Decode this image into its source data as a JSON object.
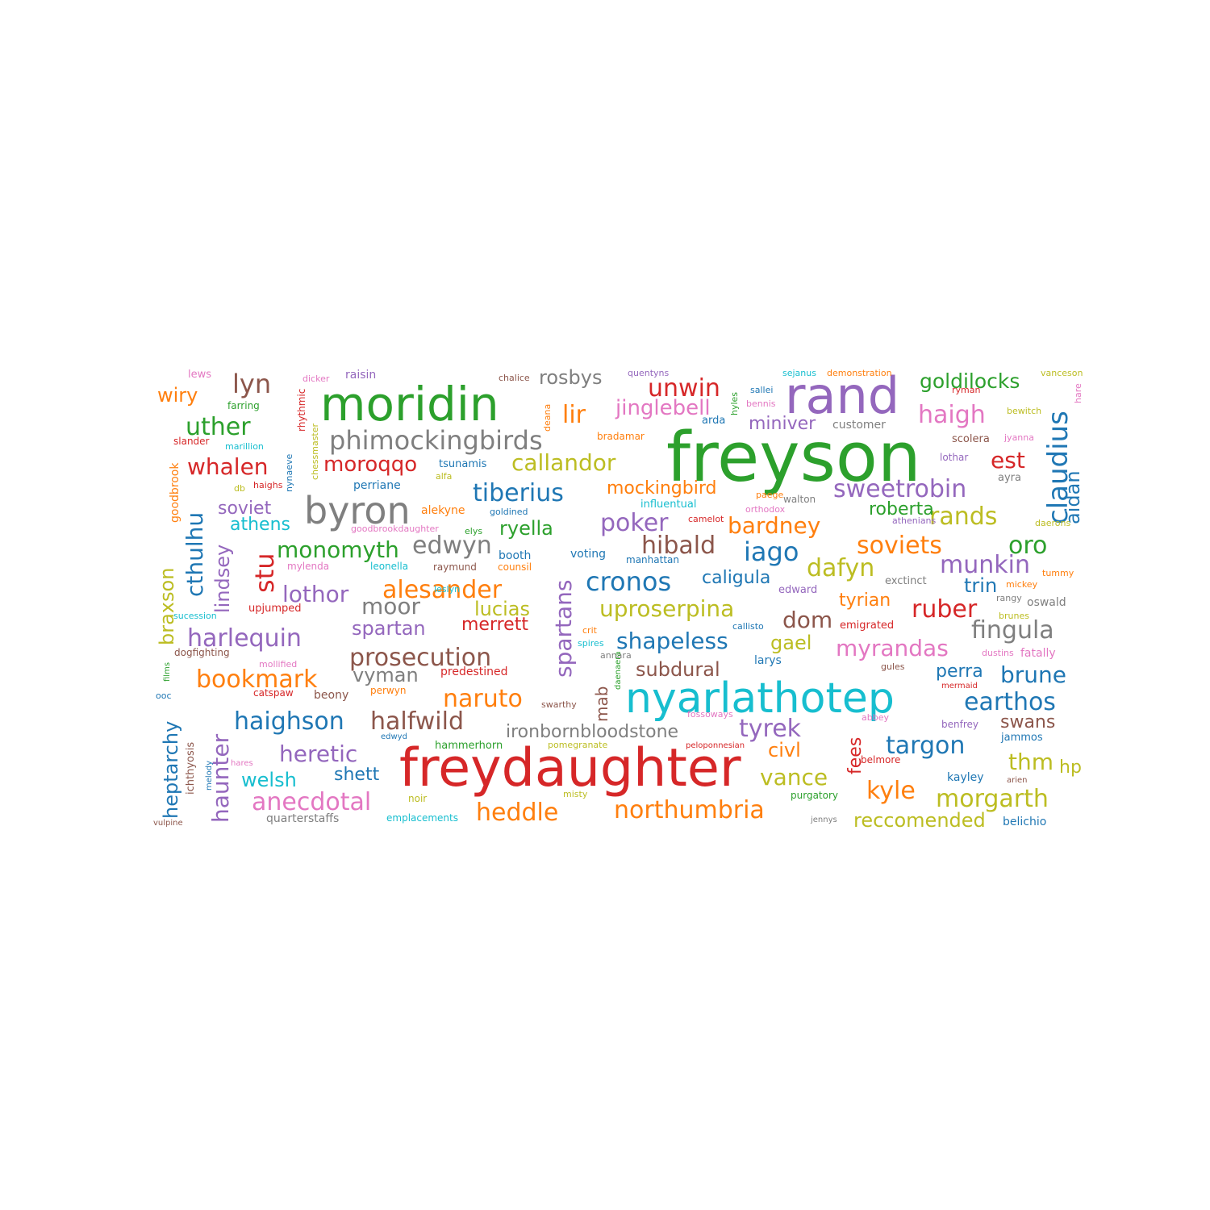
{
  "palette": {
    "blue": "#1f77b4",
    "orange": "#ff7f0e",
    "green": "#2ca02c",
    "red": "#d62728",
    "purple": "#9467bd",
    "brown": "#8c564b",
    "pink": "#e377c2",
    "gray": "#7f7f7f",
    "olive": "#bcbd22",
    "cyan": "#17becf"
  },
  "words": [
    {
      "text": "freyson",
      "color": "green"
    },
    {
      "text": "freydaughter",
      "color": "red"
    },
    {
      "text": "nyarlathotep",
      "color": "cyan"
    },
    {
      "text": "rand",
      "color": "purple"
    },
    {
      "text": "moridin",
      "color": "green"
    },
    {
      "text": "byron",
      "color": "gray"
    },
    {
      "text": "phimockingbirds",
      "color": "gray"
    },
    {
      "text": "claudius",
      "color": "blue"
    },
    {
      "text": "haigh",
      "color": "pink"
    },
    {
      "text": "unwin",
      "color": "red"
    },
    {
      "text": "lir",
      "color": "orange"
    },
    {
      "text": "lyn",
      "color": "brown"
    },
    {
      "text": "uther",
      "color": "green"
    },
    {
      "text": "whalen",
      "color": "red"
    },
    {
      "text": "cthulhu",
      "color": "blue"
    },
    {
      "text": "goldilocks",
      "color": "green"
    },
    {
      "text": "jinglebell",
      "color": "pink"
    },
    {
      "text": "rosbys",
      "color": "gray"
    },
    {
      "text": "wiry",
      "color": "orange"
    },
    {
      "text": "callandor",
      "color": "olive"
    },
    {
      "text": "moroqqo",
      "color": "red"
    },
    {
      "text": "tiberius",
      "color": "blue"
    },
    {
      "text": "sweetrobin",
      "color": "purple"
    },
    {
      "text": "mockingbird",
      "color": "orange"
    },
    {
      "text": "est",
      "color": "red"
    },
    {
      "text": "aidan",
      "color": "blue"
    },
    {
      "text": "miniver",
      "color": "purple"
    },
    {
      "text": "soviet",
      "color": "purple"
    },
    {
      "text": "athens",
      "color": "cyan"
    },
    {
      "text": "poker",
      "color": "purple"
    },
    {
      "text": "bardney",
      "color": "orange"
    },
    {
      "text": "rands",
      "color": "olive"
    },
    {
      "text": "roberta",
      "color": "green"
    },
    {
      "text": "ryella",
      "color": "green"
    },
    {
      "text": "stu",
      "color": "red"
    },
    {
      "text": "monomyth",
      "color": "green"
    },
    {
      "text": "edwyn",
      "color": "gray"
    },
    {
      "text": "hibald",
      "color": "brown"
    },
    {
      "text": "iago",
      "color": "blue"
    },
    {
      "text": "soviets",
      "color": "orange"
    },
    {
      "text": "oro",
      "color": "green"
    },
    {
      "text": "lindsey",
      "color": "purple"
    },
    {
      "text": "lothor",
      "color": "purple"
    },
    {
      "text": "alesander",
      "color": "orange"
    },
    {
      "text": "cronos",
      "color": "blue"
    },
    {
      "text": "caligula",
      "color": "blue"
    },
    {
      "text": "dafyn",
      "color": "olive"
    },
    {
      "text": "munkin",
      "color": "purple"
    },
    {
      "text": "trin",
      "color": "blue"
    },
    {
      "text": "spartans",
      "color": "purple"
    },
    {
      "text": "braxson",
      "color": "olive"
    },
    {
      "text": "moor",
      "color": "gray"
    },
    {
      "text": "lucias",
      "color": "olive"
    },
    {
      "text": "uproserpina",
      "color": "olive"
    },
    {
      "text": "tyrian",
      "color": "orange"
    },
    {
      "text": "ruber",
      "color": "red"
    },
    {
      "text": "dom",
      "color": "brown"
    },
    {
      "text": "fingula",
      "color": "gray"
    },
    {
      "text": "harlequin",
      "color": "purple"
    },
    {
      "text": "spartan",
      "color": "purple"
    },
    {
      "text": "merrett",
      "color": "red"
    },
    {
      "text": "shapeless",
      "color": "blue"
    },
    {
      "text": "gael",
      "color": "olive"
    },
    {
      "text": "myrandas",
      "color": "pink"
    },
    {
      "text": "prosecution",
      "color": "brown"
    },
    {
      "text": "vyman",
      "color": "gray"
    },
    {
      "text": "subdural",
      "color": "brown"
    },
    {
      "text": "perra",
      "color": "blue"
    },
    {
      "text": "brune",
      "color": "blue"
    },
    {
      "text": "bookmark",
      "color": "orange"
    },
    {
      "text": "naruto",
      "color": "orange"
    },
    {
      "text": "mab",
      "color": "brown"
    },
    {
      "text": "earthos",
      "color": "blue"
    },
    {
      "text": "haighson",
      "color": "blue"
    },
    {
      "text": "halfwild",
      "color": "brown"
    },
    {
      "text": "heptarchy",
      "color": "blue"
    },
    {
      "text": "haunter",
      "color": "purple"
    },
    {
      "text": "ironbornbloodstone",
      "color": "gray"
    },
    {
      "text": "tyrek",
      "color": "purple"
    },
    {
      "text": "swans",
      "color": "brown"
    },
    {
      "text": "heretic",
      "color": "purple"
    },
    {
      "text": "fees",
      "color": "red"
    },
    {
      "text": "targon",
      "color": "blue"
    },
    {
      "text": "civl",
      "color": "orange"
    },
    {
      "text": "thm",
      "color": "olive"
    },
    {
      "text": "hp",
      "color": "olive"
    },
    {
      "text": "welsh",
      "color": "cyan"
    },
    {
      "text": "shett",
      "color": "blue"
    },
    {
      "text": "vance",
      "color": "olive"
    },
    {
      "text": "kyle",
      "color": "orange"
    },
    {
      "text": "morgarth",
      "color": "olive"
    },
    {
      "text": "anecdotal",
      "color": "pink"
    },
    {
      "text": "heddle",
      "color": "orange"
    },
    {
      "text": "northumbria",
      "color": "orange"
    },
    {
      "text": "reccomended",
      "color": "olive"
    },
    {
      "text": "lews",
      "color": "pink"
    },
    {
      "text": "raisin",
      "color": "purple"
    },
    {
      "text": "dicker",
      "color": "pink"
    },
    {
      "text": "rhythmic",
      "color": "red"
    },
    {
      "text": "farring",
      "color": "green"
    },
    {
      "text": "chalice",
      "color": "brown"
    },
    {
      "text": "quentyns",
      "color": "purple"
    },
    {
      "text": "hyles",
      "color": "green"
    },
    {
      "text": "sejanus",
      "color": "cyan"
    },
    {
      "text": "demonstration",
      "color": "orange"
    },
    {
      "text": "vanceson",
      "color": "olive"
    },
    {
      "text": "hare",
      "color": "pink"
    },
    {
      "text": "ryman",
      "color": "red"
    },
    {
      "text": "sallei",
      "color": "blue"
    },
    {
      "text": "bennis",
      "color": "pink"
    },
    {
      "text": "bewitch",
      "color": "olive"
    },
    {
      "text": "deana",
      "color": "orange"
    },
    {
      "text": "arda",
      "color": "blue"
    },
    {
      "text": "customer",
      "color": "gray"
    },
    {
      "text": "bradamar",
      "color": "orange"
    },
    {
      "text": "slander",
      "color": "red"
    },
    {
      "text": "marillion",
      "color": "cyan"
    },
    {
      "text": "chessmaster",
      "color": "olive"
    },
    {
      "text": "scolera",
      "color": "brown"
    },
    {
      "text": "jyanna",
      "color": "pink"
    },
    {
      "text": "lothar",
      "color": "purple"
    },
    {
      "text": "tsunamis",
      "color": "blue"
    },
    {
      "text": "goodbrook",
      "color": "orange"
    },
    {
      "text": "nynaeve",
      "color": "blue"
    },
    {
      "text": "alfa",
      "color": "olive"
    },
    {
      "text": "ayra",
      "color": "gray"
    },
    {
      "text": "db",
      "color": "olive"
    },
    {
      "text": "haighs",
      "color": "red"
    },
    {
      "text": "perriane",
      "color": "blue"
    },
    {
      "text": "paege",
      "color": "orange"
    },
    {
      "text": "walton",
      "color": "gray"
    },
    {
      "text": "influentual",
      "color": "cyan"
    },
    {
      "text": "orthodox",
      "color": "pink"
    },
    {
      "text": "alekyne",
      "color": "orange"
    },
    {
      "text": "goldined",
      "color": "blue"
    },
    {
      "text": "camelot",
      "color": "red"
    },
    {
      "text": "athenians",
      "color": "purple"
    },
    {
      "text": "daerons",
      "color": "olive"
    },
    {
      "text": "goodbrookdaughter",
      "color": "pink"
    },
    {
      "text": "elys",
      "color": "green"
    },
    {
      "text": "booth",
      "color": "blue"
    },
    {
      "text": "voting",
      "color": "blue"
    },
    {
      "text": "manhattan",
      "color": "blue"
    },
    {
      "text": "tummy",
      "color": "orange"
    },
    {
      "text": "mylenda",
      "color": "pink"
    },
    {
      "text": "leonella",
      "color": "cyan"
    },
    {
      "text": "raymund",
      "color": "brown"
    },
    {
      "text": "counsil",
      "color": "orange"
    },
    {
      "text": "exctinct",
      "color": "gray"
    },
    {
      "text": "mickey",
      "color": "orange"
    },
    {
      "text": "edward",
      "color": "purple"
    },
    {
      "text": "rangy",
      "color": "gray"
    },
    {
      "text": "oswald",
      "color": "gray"
    },
    {
      "text": "leslyn",
      "color": "cyan"
    },
    {
      "text": "upjumped",
      "color": "red"
    },
    {
      "text": "sucession",
      "color": "cyan"
    },
    {
      "text": "callisto",
      "color": "blue"
    },
    {
      "text": "emigrated",
      "color": "red"
    },
    {
      "text": "brunes",
      "color": "olive"
    },
    {
      "text": "crit",
      "color": "orange"
    },
    {
      "text": "spires",
      "color": "cyan"
    },
    {
      "text": "dogfighting",
      "color": "brown"
    },
    {
      "text": "annara",
      "color": "gray"
    },
    {
      "text": "dustins",
      "color": "pink"
    },
    {
      "text": "fatally",
      "color": "pink"
    },
    {
      "text": "larys",
      "color": "blue"
    },
    {
      "text": "mollified",
      "color": "pink"
    },
    {
      "text": "films",
      "color": "green"
    },
    {
      "text": "predestined",
      "color": "red"
    },
    {
      "text": "gules",
      "color": "brown"
    },
    {
      "text": "daenaera",
      "color": "green"
    },
    {
      "text": "ooc",
      "color": "blue"
    },
    {
      "text": "catspaw",
      "color": "red"
    },
    {
      "text": "beony",
      "color": "brown"
    },
    {
      "text": "perwyn",
      "color": "orange"
    },
    {
      "text": "mermaid",
      "color": "red"
    },
    {
      "text": "swarthy",
      "color": "brown"
    },
    {
      "text": "fossoways",
      "color": "pink"
    },
    {
      "text": "abbey",
      "color": "pink"
    },
    {
      "text": "benfrey",
      "color": "purple"
    },
    {
      "text": "ichthyosis",
      "color": "brown"
    },
    {
      "text": "edwyd",
      "color": "blue"
    },
    {
      "text": "jammos",
      "color": "blue"
    },
    {
      "text": "hammerhorn",
      "color": "green"
    },
    {
      "text": "pomegranate",
      "color": "olive"
    },
    {
      "text": "peloponnesian",
      "color": "red"
    },
    {
      "text": "hares",
      "color": "pink"
    },
    {
      "text": "melody",
      "color": "blue"
    },
    {
      "text": "belmore",
      "color": "red"
    },
    {
      "text": "kayley",
      "color": "blue"
    },
    {
      "text": "arien",
      "color": "brown"
    },
    {
      "text": "noir",
      "color": "olive"
    },
    {
      "text": "misty",
      "color": "olive"
    },
    {
      "text": "purgatory",
      "color": "green"
    },
    {
      "text": "vulpine",
      "color": "brown"
    },
    {
      "text": "quarterstaffs",
      "color": "gray"
    },
    {
      "text": "emplacements",
      "color": "cyan"
    },
    {
      "text": "jennys",
      "color": "gray"
    },
    {
      "text": "belichio",
      "color": "blue"
    }
  ]
}
